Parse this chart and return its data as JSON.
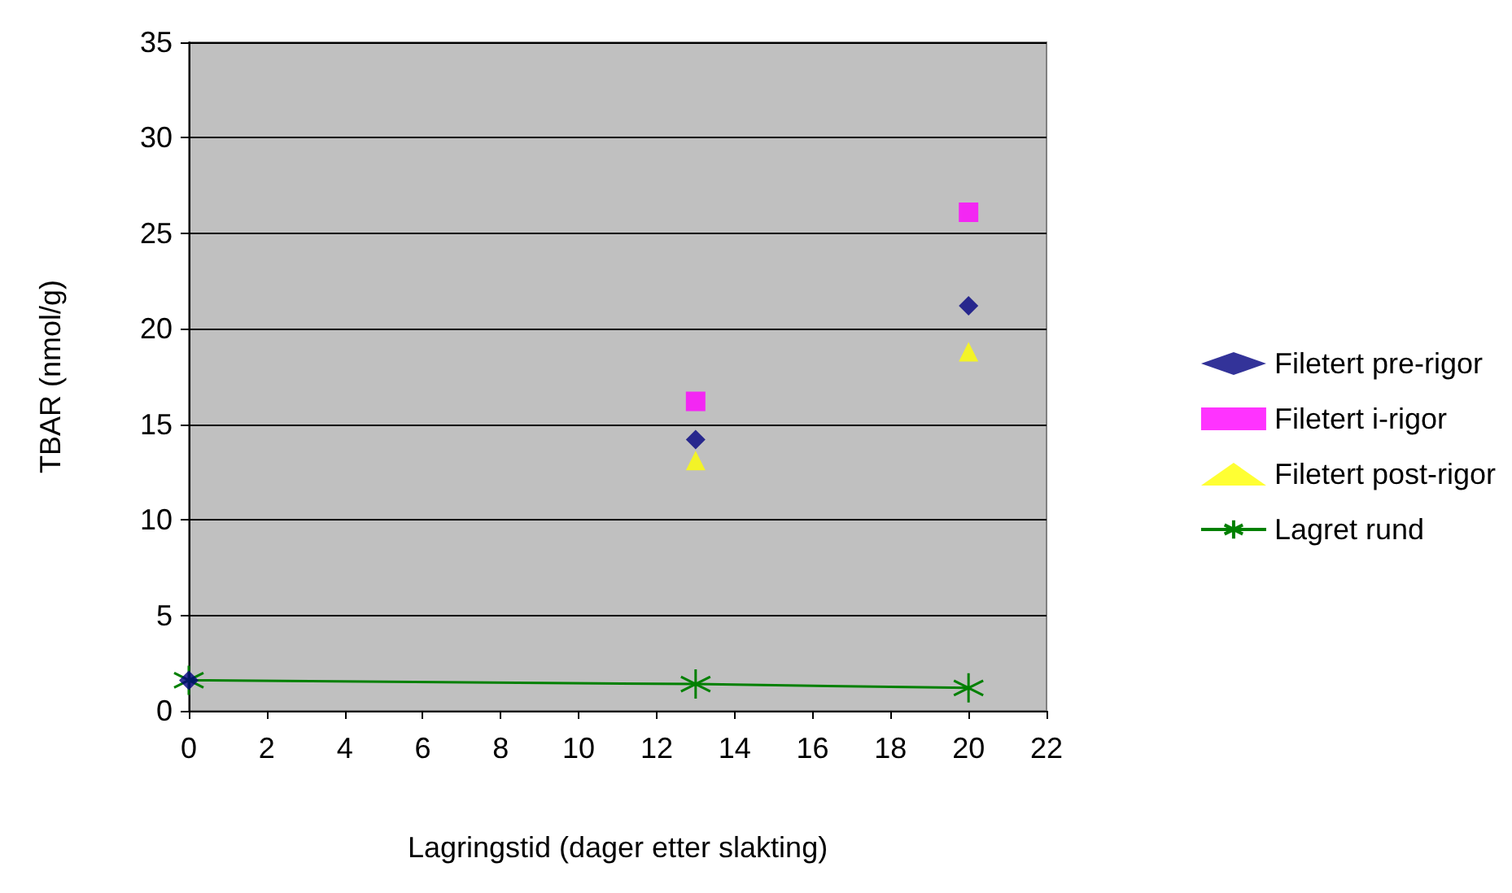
{
  "chart_data": {
    "type": "scatter",
    "xlabel": "Lagringstid (dager etter slakting)",
    "ylabel": "TBAR (nmol/g)",
    "x": [
      0,
      13,
      20
    ],
    "series": [
      {
        "name": "Filetert pre-rigor",
        "color": "#000080",
        "marker": "diamond",
        "values": [
          1.6,
          14.2,
          21.2
        ]
      },
      {
        "name": "Filetert i-rigor",
        "color": "#ff00ff",
        "marker": "square",
        "values": [
          null,
          16.2,
          26.1
        ]
      },
      {
        "name": "Filetert post-rigor",
        "color": "#ffff00",
        "marker": "triangle",
        "values": [
          null,
          13.1,
          18.8
        ]
      },
      {
        "name": "Lagret rund",
        "type": "line",
        "color": "#008000",
        "marker": "cross",
        "values": [
          1.6,
          1.4,
          1.2
        ]
      }
    ],
    "xlim": [
      0,
      22
    ],
    "xticks": [
      0,
      2,
      4,
      6,
      8,
      10,
      12,
      14,
      16,
      18,
      20,
      22
    ],
    "ylim": [
      0,
      35
    ],
    "yticks": [
      0,
      5,
      10,
      15,
      20,
      25,
      30,
      35
    ],
    "grid": "y",
    "legend": "right"
  }
}
